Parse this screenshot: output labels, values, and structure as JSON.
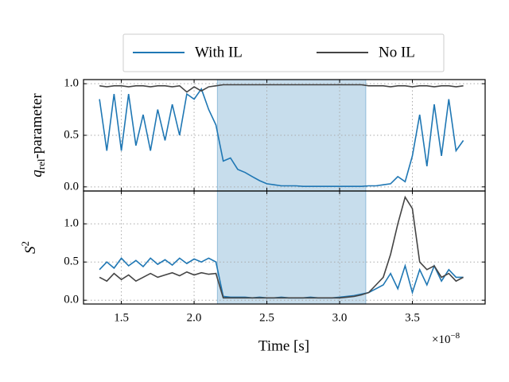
{
  "chart_data": [
    {
      "type": "line",
      "ylabel": {
        "symbol": "q",
        "subscript": "rel",
        "text": "-parameter"
      },
      "x": [
        1.35,
        1.4,
        1.45,
        1.5,
        1.55,
        1.6,
        1.65,
        1.7,
        1.75,
        1.8,
        1.85,
        1.9,
        1.95,
        2.0,
        2.05,
        2.1,
        2.15,
        2.2,
        2.25,
        2.3,
        2.35,
        2.4,
        2.45,
        2.5,
        2.55,
        2.6,
        2.65,
        2.7,
        2.75,
        2.8,
        2.85,
        2.9,
        2.95,
        3.0,
        3.05,
        3.1,
        3.15,
        3.2,
        3.25,
        3.3,
        3.35,
        3.4,
        3.45,
        3.5,
        3.55,
        3.6,
        3.65,
        3.7,
        3.75,
        3.8,
        3.85
      ],
      "series": [
        {
          "name": "With IL",
          "color": "#1f77b4",
          "values": [
            0.85,
            0.35,
            0.9,
            0.35,
            0.9,
            0.4,
            0.7,
            0.35,
            0.75,
            0.45,
            0.8,
            0.5,
            0.9,
            0.85,
            0.95,
            0.75,
            0.6,
            0.25,
            0.28,
            0.17,
            0.14,
            0.1,
            0.06,
            0.03,
            0.02,
            0.01,
            0.01,
            0.01,
            0.005,
            0.005,
            0.005,
            0.005,
            0.005,
            0.005,
            0.005,
            0.005,
            0.005,
            0.01,
            0.01,
            0.02,
            0.03,
            0.1,
            0.05,
            0.3,
            0.7,
            0.2,
            0.8,
            0.3,
            0.85,
            0.35,
            0.45
          ]
        },
        {
          "name": "No IL",
          "color": "#444444",
          "values": [
            0.98,
            0.97,
            0.98,
            0.98,
            0.97,
            0.98,
            0.98,
            0.97,
            0.98,
            0.98,
            0.97,
            0.98,
            0.92,
            0.97,
            0.93,
            0.97,
            0.98,
            0.99,
            0.99,
            0.99,
            0.99,
            0.99,
            0.99,
            0.99,
            0.99,
            0.99,
            0.99,
            0.99,
            0.99,
            0.99,
            0.99,
            0.99,
            0.99,
            0.99,
            0.99,
            0.99,
            0.99,
            0.98,
            0.98,
            0.98,
            0.97,
            0.98,
            0.98,
            0.97,
            0.98,
            0.98,
            0.97,
            0.98,
            0.98,
            0.97,
            0.98
          ]
        }
      ],
      "span": [
        2.16,
        3.18
      ],
      "xlim": [
        1.24,
        4.0
      ],
      "ylim": [
        -0.04,
        1.04
      ],
      "yticks": [
        {
          "value": 0,
          "label": "0.0"
        },
        0.5,
        {
          "value": 1,
          "label": "1.0"
        }
      ],
      "grid": true
    },
    {
      "type": "line",
      "ylabel": {
        "symbol": "S",
        "superscript": "2"
      },
      "xlabel": "Time [s]",
      "offset": {
        "base": "×10",
        "exponent": "−8"
      },
      "x": [
        1.35,
        1.4,
        1.45,
        1.5,
        1.55,
        1.6,
        1.65,
        1.7,
        1.75,
        1.8,
        1.85,
        1.9,
        1.95,
        2.0,
        2.05,
        2.1,
        2.15,
        2.2,
        2.25,
        2.3,
        2.35,
        2.4,
        2.45,
        2.5,
        2.55,
        2.6,
        2.65,
        2.7,
        2.75,
        2.8,
        2.85,
        2.9,
        2.95,
        3.0,
        3.05,
        3.1,
        3.15,
        3.2,
        3.25,
        3.3,
        3.35,
        3.4,
        3.45,
        3.5,
        3.55,
        3.6,
        3.65,
        3.7,
        3.75,
        3.8,
        3.85
      ],
      "series": [
        {
          "color": "#1f77b4",
          "values": [
            0.4,
            0.5,
            0.42,
            0.55,
            0.45,
            0.52,
            0.44,
            0.55,
            0.47,
            0.53,
            0.46,
            0.55,
            0.48,
            0.54,
            0.5,
            0.55,
            0.5,
            0.05,
            0.04,
            0.04,
            0.04,
            0.03,
            0.04,
            0.03,
            0.03,
            0.04,
            0.03,
            0.03,
            0.03,
            0.04,
            0.03,
            0.03,
            0.03,
            0.04,
            0.05,
            0.06,
            0.08,
            0.1,
            0.15,
            0.2,
            0.35,
            0.15,
            0.45,
            0.1,
            0.4,
            0.2,
            0.45,
            0.25,
            0.4,
            0.3,
            0.3
          ]
        },
        {
          "color": "#444444",
          "values": [
            0.3,
            0.25,
            0.35,
            0.27,
            0.33,
            0.25,
            0.3,
            0.35,
            0.3,
            0.33,
            0.36,
            0.32,
            0.37,
            0.33,
            0.36,
            0.34,
            0.35,
            0.03,
            0.03,
            0.03,
            0.03,
            0.03,
            0.03,
            0.03,
            0.03,
            0.03,
            0.03,
            0.03,
            0.03,
            0.03,
            0.03,
            0.03,
            0.03,
            0.03,
            0.04,
            0.05,
            0.07,
            0.1,
            0.2,
            0.3,
            0.6,
            1.0,
            1.35,
            1.2,
            0.5,
            0.4,
            0.45,
            0.3,
            0.35,
            0.25,
            0.3
          ]
        }
      ],
      "span": [
        2.16,
        3.18
      ],
      "xlim": [
        1.24,
        4.0
      ],
      "xticks": [
        1.5,
        {
          "value": 2,
          "label": "2.0"
        },
        2.5,
        {
          "value": 3,
          "label": "3.0"
        },
        3.5
      ],
      "ylim": [
        -0.05,
        1.43
      ],
      "yticks": [
        {
          "value": 0,
          "label": "0.0"
        },
        0.5,
        {
          "value": 1,
          "label": "1.0"
        }
      ],
      "grid": true
    }
  ]
}
